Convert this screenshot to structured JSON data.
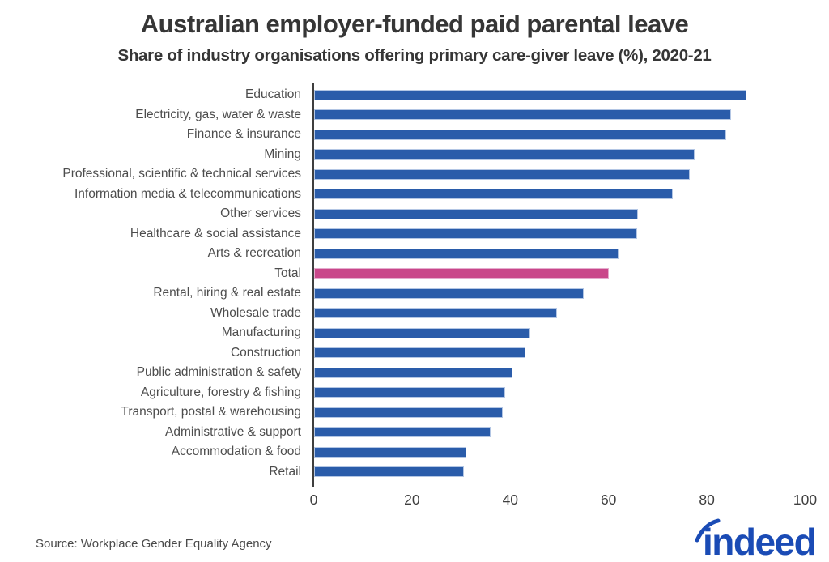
{
  "chart_data": {
    "type": "bar",
    "orientation": "horizontal",
    "title": "Australian employer-funded paid parental leave",
    "subtitle": "Share of industry organisations offering primary care-giver leave (%), 2020-21",
    "xlabel": "",
    "ylabel": "",
    "xlim": [
      0,
      100
    ],
    "x_ticks": [
      0,
      20,
      40,
      60,
      80,
      100
    ],
    "grid": false,
    "legend": false,
    "categories": [
      "Education",
      "Electricity, gas, water & waste",
      "Finance & insurance",
      "Mining",
      "Professional, scientific & technical services",
      "Information media & telecommunications",
      "Other services",
      "Healthcare & social assistance",
      "Arts & recreation",
      "Total",
      "Rental, hiring & real estate",
      "Wholesale trade",
      "Manufacturing",
      "Construction",
      "Public administration & safety",
      "Agriculture, forestry & fishing",
      "Transport, postal & warehousing",
      "Administrative & support",
      "Accommodation & food",
      "Retail"
    ],
    "values": [
      88,
      85,
      84,
      77.5,
      76.5,
      73,
      66,
      65.8,
      62,
      60,
      55,
      49.5,
      44,
      43,
      40.5,
      39,
      38.5,
      36,
      31,
      30.5
    ],
    "highlight_category": "Total",
    "bar_color": "#2a5caa",
    "bar_border_color": "#b3c6e4",
    "highlight_color": "#c9478a",
    "highlight_border_color": "#e4abcd",
    "axis_color": "#3f3f3f"
  },
  "footer": {
    "source": "Source: Workplace Gender Equality Agency",
    "logo_text": "indeed",
    "logo_color": "#1a4bb5"
  }
}
